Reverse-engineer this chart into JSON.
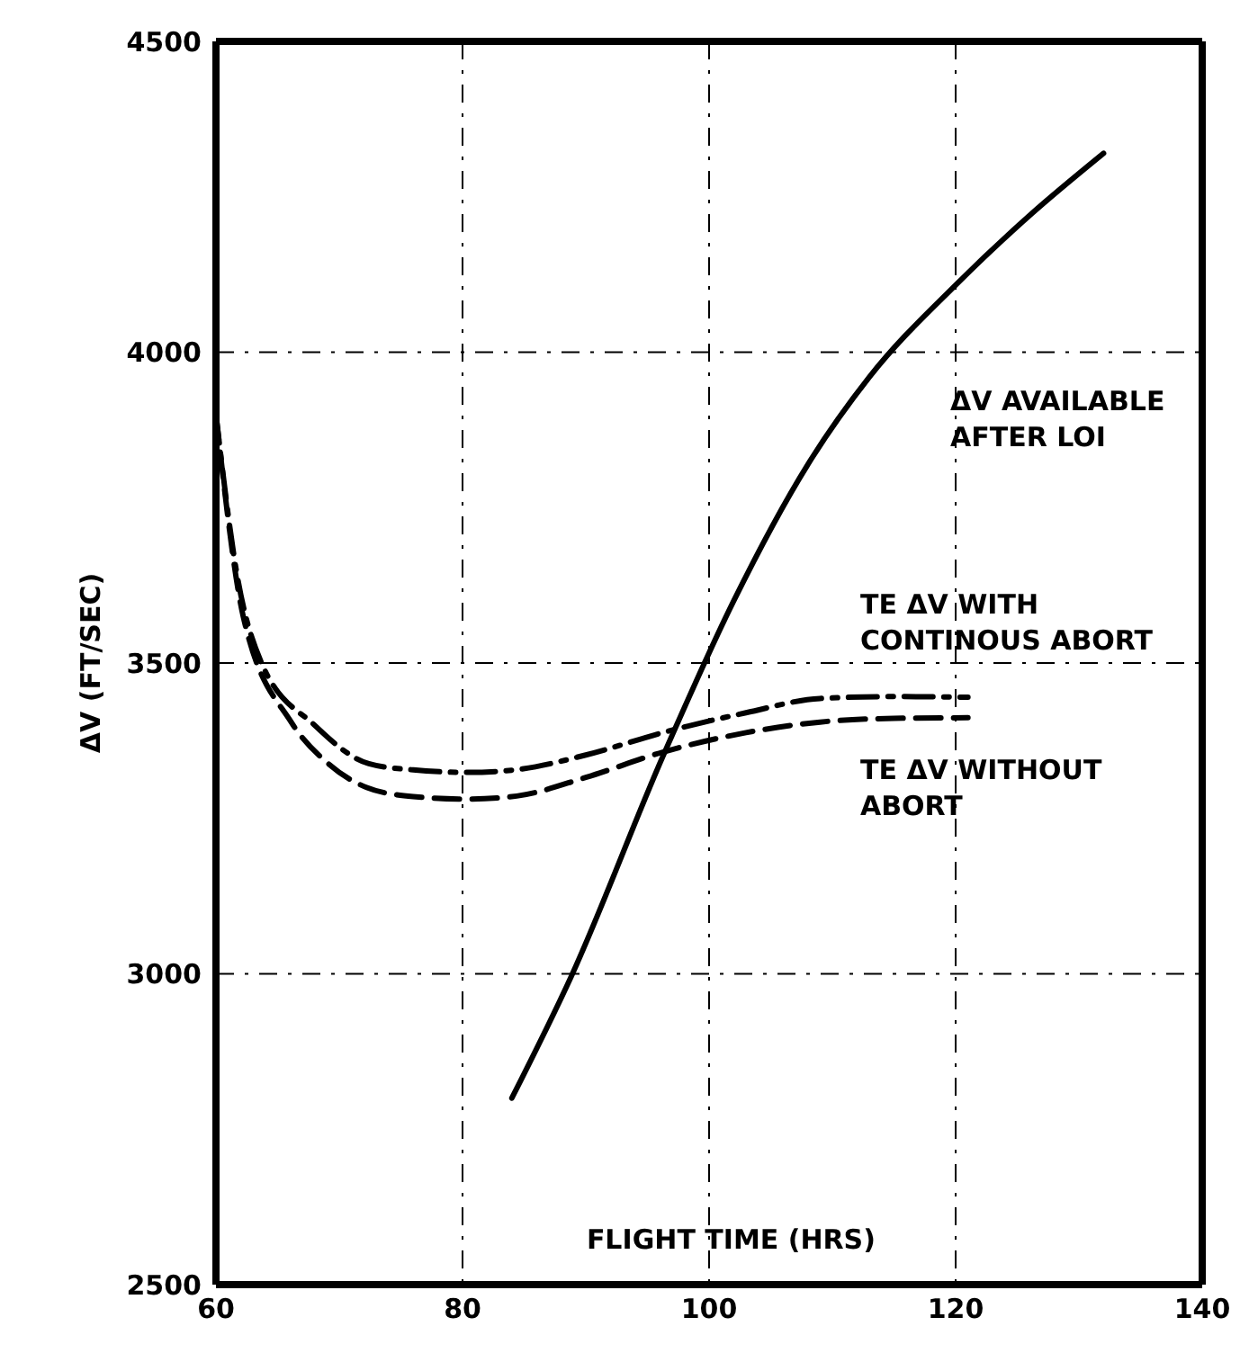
{
  "chart_data": {
    "type": "line",
    "xlabel": "FLIGHT TIME (HRS)",
    "ylabel": "ΔV (FT/SEC)",
    "xlim": [
      60,
      140
    ],
    "xticks": [
      60,
      80,
      100,
      120,
      140
    ],
    "ylim": [
      2500,
      4500
    ],
    "yticks": [
      2500,
      3000,
      3500,
      4000,
      4500
    ],
    "grid": true,
    "legend": false,
    "marker": "none",
    "series": [
      {
        "name": "ΔV AVAILABLE AFTER LOI",
        "color": "#000000",
        "line_style": "solid",
        "x": [
          84,
          88.8,
          96.3,
          102,
          108,
          113,
          120,
          126,
          132
        ],
        "values": [
          2800,
          2995,
          3352,
          3600,
          3819,
          3960,
          4108,
          4220,
          4320
        ]
      },
      {
        "name": "TE ΔV WITH CONTINOUS ABORT",
        "color": "#000000",
        "line_style": "dashdot",
        "x": [
          60,
          61.7,
          63.7,
          68,
          72.4,
          76,
          80.5,
          84.6,
          90,
          96.6,
          103,
          109,
          115,
          121
        ],
        "values": [
          3900,
          3643,
          3500,
          3400,
          3338,
          3328,
          3324,
          3329,
          3352,
          3390,
          3420,
          3443,
          3446,
          3445
        ]
      },
      {
        "name": "TE ΔV WITHOUT ABORT",
        "color": "#000000",
        "line_style": "dashed",
        "x": [
          60,
          62.2,
          66.1,
          69,
          72.2,
          76,
          80.5,
          84.4,
          90,
          96.3,
          103,
          109,
          115,
          121
        ],
        "values": [
          3900,
          3576,
          3405,
          3340,
          3300,
          3285,
          3281,
          3286,
          3316,
          3357,
          3388,
          3405,
          3411,
          3412
        ]
      }
    ]
  }
}
